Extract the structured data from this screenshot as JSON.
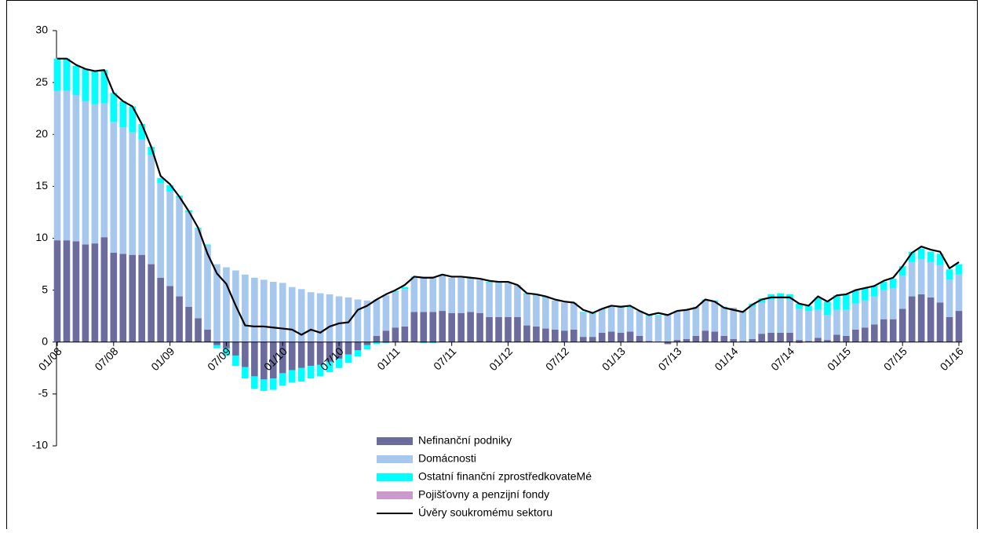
{
  "chart_data": {
    "type": "bar",
    "categories": [
      "01/08",
      null,
      null,
      null,
      null,
      null,
      "07/08",
      null,
      null,
      null,
      null,
      null,
      "01/09",
      null,
      null,
      null,
      null,
      null,
      "07/09",
      null,
      null,
      null,
      null,
      null,
      "01/10",
      null,
      null,
      null,
      null,
      null,
      "07/10",
      null,
      null,
      null,
      null,
      null,
      "01/11",
      null,
      null,
      null,
      null,
      null,
      "07/11",
      null,
      null,
      null,
      null,
      null,
      "01/12",
      null,
      null,
      null,
      null,
      null,
      "07/12",
      null,
      null,
      null,
      null,
      null,
      "01/13",
      null,
      null,
      null,
      null,
      null,
      "07/13",
      null,
      null,
      null,
      null,
      null,
      "01/14",
      null,
      null,
      null,
      null,
      null,
      "07/14",
      null,
      null,
      null,
      null,
      null,
      "01/15",
      null,
      null,
      null,
      null,
      null,
      "07/15",
      null,
      null,
      null,
      null,
      null,
      "01/16"
    ],
    "series": [
      {
        "name": "Nefinanční podniky",
        "color": "#6b6b9e",
        "values": [
          9.8,
          9.8,
          9.7,
          9.4,
          9.5,
          10.1,
          8.6,
          8.5,
          8.4,
          8.4,
          7.5,
          6.2,
          5.4,
          4.4,
          3.4,
          2.3,
          1.2,
          -0.3,
          -0.6,
          -1.3,
          -2.4,
          -3.3,
          -3.6,
          -3.5,
          -3.0,
          -2.7,
          -2.5,
          -2.3,
          -2.2,
          -1.9,
          -1.6,
          -1.2,
          -0.8,
          -0.3,
          0.6,
          1.1,
          1.4,
          1.5,
          2.9,
          2.9,
          2.9,
          3.0,
          2.8,
          2.8,
          2.9,
          2.8,
          2.4,
          2.4,
          2.4,
          2.4,
          1.6,
          1.5,
          1.3,
          1.2,
          1.1,
          1.2,
          0.5,
          0.5,
          0.9,
          1.0,
          0.9,
          1.0,
          0.6,
          0.1,
          0.0,
          -0.2,
          0.2,
          0.3,
          0.6,
          1.1,
          1.0,
          0.6,
          0.3,
          0.1,
          0.3,
          0.8,
          0.9,
          0.9,
          0.9,
          0.2,
          0.1,
          0.4,
          0.2,
          0.7,
          0.6,
          1.2,
          1.4,
          1.7,
          2.2,
          2.2,
          3.2,
          4.4,
          4.6,
          4.3,
          3.8,
          2.4,
          3.0
        ]
      },
      {
        "name": "Domácnosti",
        "color": "#a6c8ee",
        "values": [
          14.4,
          14.4,
          14.1,
          13.8,
          13.4,
          12.9,
          12.6,
          12.2,
          11.8,
          11.1,
          10.5,
          9.1,
          9.1,
          9.5,
          9.1,
          8.6,
          8.1,
          7.5,
          7.2,
          6.9,
          6.5,
          6.2,
          6.0,
          5.8,
          5.7,
          5.3,
          5.1,
          4.8,
          4.7,
          4.6,
          4.4,
          4.3,
          4.1,
          4.0,
          3.5,
          3.4,
          3.4,
          3.6,
          3.3,
          3.3,
          3.4,
          3.4,
          3.4,
          3.4,
          3.2,
          3.2,
          3.3,
          3.3,
          3.3,
          3.1,
          3.0,
          3.0,
          3.0,
          2.8,
          2.7,
          2.6,
          2.3,
          2.2,
          2.2,
          2.4,
          2.4,
          2.3,
          2.4,
          2.4,
          2.5,
          2.6,
          2.8,
          2.8,
          2.8,
          2.9,
          2.9,
          2.7,
          2.8,
          2.8,
          3.1,
          3.0,
          3.2,
          3.3,
          3.2,
          3.0,
          2.9,
          2.7,
          2.4,
          2.4,
          2.5,
          2.5,
          2.6,
          2.7,
          2.8,
          3.0,
          3.2,
          3.3,
          3.4,
          3.4,
          3.6,
          3.6,
          3.5
        ]
      },
      {
        "name": "Ostatní finanční zprostředkovateMé",
        "color": "#00ffff",
        "values": [
          3.1,
          3.1,
          2.8,
          3.1,
          3.2,
          3.2,
          2.8,
          2.5,
          2.5,
          1.5,
          0.8,
          0.5,
          0.6,
          0.2,
          0.2,
          0.1,
          0.1,
          -0.3,
          -0.7,
          -1.0,
          -1.1,
          -1.2,
          -1.1,
          -1.1,
          -1.2,
          -1.2,
          -1.3,
          -1.2,
          -1.1,
          -1.0,
          -0.9,
          -0.8,
          -0.6,
          -0.4,
          -0.2,
          -0.1,
          0.1,
          0.2,
          0.1,
          -0.1,
          -0.1,
          0.1,
          0.0,
          0.0,
          0.1,
          0.0,
          0.1,
          0.1,
          0.0,
          0.0,
          0.1,
          0.1,
          0.1,
          0.0,
          0.0,
          0.0,
          0.1,
          0.1,
          0.1,
          0.1,
          0.1,
          0.1,
          0.0,
          0.1,
          0.1,
          0.1,
          0.0,
          0.0,
          0.0,
          0.1,
          0.1,
          0.1,
          0.1,
          0.1,
          0.3,
          0.4,
          0.5,
          0.5,
          0.5,
          0.5,
          0.5,
          1.2,
          1.3,
          1.4,
          1.5,
          1.3,
          1.2,
          1.0,
          0.8,
          0.9,
          0.9,
          1.0,
          1.0,
          1.0,
          1.1,
          1.0,
          1.0
        ]
      },
      {
        "name": "Pojišťovny a penzijní fondy",
        "color": "#cc99cc",
        "values": [
          0.0,
          0.0,
          0.0,
          0.0,
          0.0,
          0.0,
          0.0,
          0.0,
          0.0,
          0.0,
          0.0,
          0.0,
          0.0,
          0.0,
          0.0,
          0.0,
          0.0,
          0.0,
          0.0,
          0.0,
          0.0,
          0.0,
          0.0,
          0.0,
          0.0,
          0.0,
          0.0,
          0.0,
          0.0,
          0.0,
          0.0,
          0.0,
          0.0,
          0.0,
          0.0,
          0.0,
          0.0,
          0.0,
          0.0,
          0.0,
          0.0,
          0.0,
          0.0,
          0.0,
          0.0,
          0.0,
          0.0,
          0.0,
          0.0,
          0.0,
          0.0,
          0.0,
          0.0,
          0.0,
          0.0,
          0.0,
          0.0,
          0.0,
          0.0,
          0.0,
          0.0,
          0.0,
          0.0,
          0.0,
          0.0,
          0.0,
          0.0,
          0.0,
          0.0,
          0.0,
          0.0,
          0.0,
          0.1,
          0.0,
          0.0,
          0.0,
          0.0,
          0.0,
          0.0,
          -0.1,
          0.0,
          0.0,
          0.0,
          0.0,
          0.0,
          0.0,
          0.0,
          0.0,
          0.0,
          0.0,
          0.0,
          0.0,
          0.0,
          0.0,
          0.0,
          0.0,
          0.0
        ]
      }
    ],
    "line": {
      "name": "Úvěry soukromému sektoru",
      "color": "#000000",
      "values": [
        27.3,
        27.3,
        26.7,
        26.3,
        26.1,
        26.2,
        24.0,
        23.2,
        22.7,
        21.0,
        18.8,
        16.0,
        15.2,
        14.0,
        12.6,
        11.0,
        8.5,
        6.6,
        5.6,
        3.5,
        1.6,
        1.5,
        1.5,
        1.4,
        1.3,
        1.2,
        0.7,
        1.2,
        0.9,
        1.5,
        1.8,
        1.9,
        3.1,
        3.5,
        4.1,
        4.6,
        5.0,
        5.5,
        6.3,
        6.2,
        6.2,
        6.5,
        6.3,
        6.3,
        6.2,
        6.1,
        5.9,
        5.8,
        5.8,
        5.5,
        4.7,
        4.6,
        4.4,
        4.1,
        3.9,
        3.8,
        3.1,
        2.8,
        3.2,
        3.5,
        3.4,
        3.5,
        3.0,
        2.6,
        2.8,
        2.6,
        3.0,
        3.1,
        3.3,
        4.1,
        3.9,
        3.3,
        3.1,
        2.9,
        3.6,
        4.1,
        4.3,
        4.3,
        4.3,
        3.7,
        3.5,
        4.4,
        3.9,
        4.5,
        4.6,
        5.0,
        5.2,
        5.4,
        5.9,
        6.2,
        7.3,
        8.6,
        9.2,
        8.9,
        8.7,
        7.1,
        7.7
      ]
    },
    "ylim": [
      -10,
      30
    ],
    "yticks": [
      -10,
      -5,
      0,
      5,
      10,
      15,
      20,
      25,
      30
    ],
    "grid": false,
    "legend": "bottom"
  }
}
